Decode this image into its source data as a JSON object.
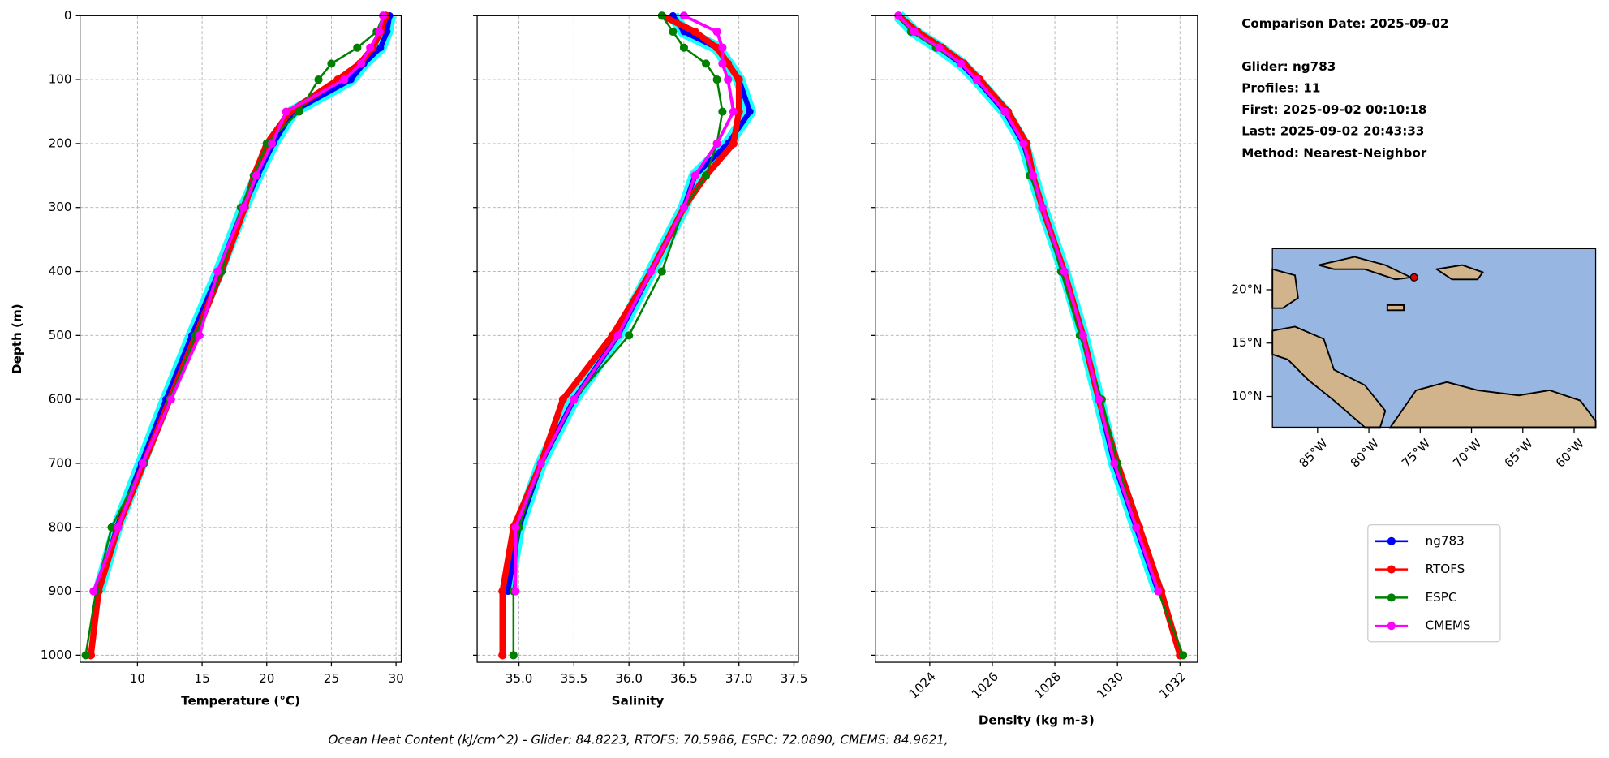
{
  "chart_data": [
    {
      "type": "line",
      "xlabel": "Temperature (°C)",
      "ylabel": "Depth (m)",
      "ytick_labels": true,
      "grid": true,
      "xlim": [
        5.56,
        30.4
      ],
      "xticks": [
        10,
        15,
        20,
        25,
        30
      ],
      "ylim": [
        1011,
        0
      ],
      "yticks": [
        0,
        100,
        200,
        300,
        400,
        500,
        600,
        700,
        800,
        900,
        1000
      ],
      "depth": [
        0,
        25,
        50,
        75,
        100,
        150,
        200,
        250,
        300,
        400,
        500,
        600,
        700,
        800,
        900,
        1000
      ],
      "series": [
        {
          "name": "ng783",
          "color": "#0000ff",
          "values": [
            29.5,
            29.3,
            28.8,
            27.5,
            26.5,
            22.0,
            20.5,
            19.3,
            18.2,
            16.3,
            14.2,
            12.2,
            10.3,
            8.4,
            7.0,
            null
          ]
        },
        {
          "name": "RTOFS",
          "color": "#ff0000",
          "values": [
            29.2,
            28.8,
            28.2,
            27.2,
            25.5,
            21.8,
            20.0,
            19.0,
            18.3,
            16.5,
            14.5,
            12.5,
            10.5,
            8.5,
            7.0,
            6.4
          ]
        },
        {
          "name": "ESPC",
          "color": "#008000",
          "values": [
            29.0,
            28.5,
            27.0,
            25.0,
            24.0,
            22.5,
            20.0,
            19.0,
            18.0,
            16.5,
            14.5,
            12.5,
            10.5,
            8.0,
            6.8,
            6.0
          ]
        },
        {
          "name": "CMEMS",
          "color": "#ff00ff",
          "values": [
            29.0,
            28.7,
            28.0,
            27.3,
            26.0,
            21.5,
            20.4,
            19.2,
            18.2,
            16.2,
            14.8,
            12.6,
            10.4,
            8.5,
            6.6,
            null
          ]
        }
      ]
    },
    {
      "type": "line",
      "xlabel": "Salinity",
      "ytick_labels": false,
      "grid": true,
      "xlim": [
        34.62,
        37.54
      ],
      "xticks": [
        {
          "value": 35,
          "label": "35.0"
        },
        35.5,
        {
          "value": 36,
          "label": "36.0"
        },
        36.5,
        {
          "value": 37,
          "label": "37.0"
        },
        37.5
      ],
      "ylim": [
        1011,
        0
      ],
      "yticks": [
        0,
        100,
        200,
        300,
        400,
        500,
        600,
        700,
        800,
        900,
        1000
      ],
      "depth": [
        0,
        25,
        50,
        75,
        100,
        150,
        200,
        250,
        300,
        400,
        500,
        600,
        700,
        800,
        900,
        1000
      ],
      "series": [
        {
          "name": "ng783",
          "color": "#0000ff",
          "values": [
            36.4,
            36.5,
            36.8,
            36.9,
            37.0,
            37.1,
            36.9,
            36.6,
            36.5,
            36.2,
            35.9,
            35.5,
            35.2,
            35.0,
            34.9,
            null
          ]
        },
        {
          "name": "RTOFS",
          "color": "#ff0000",
          "values": [
            36.3,
            36.6,
            36.8,
            36.9,
            37.0,
            37.0,
            36.95,
            36.7,
            36.5,
            36.2,
            35.85,
            35.4,
            35.2,
            34.95,
            34.85,
            34.85
          ]
        },
        {
          "name": "ESPC",
          "color": "#008000",
          "values": [
            36.3,
            36.4,
            36.5,
            36.7,
            36.8,
            36.85,
            36.8,
            36.7,
            36.5,
            36.3,
            36.0,
            35.5,
            35.2,
            35.0,
            34.95,
            34.95
          ]
        },
        {
          "name": "CMEMS",
          "color": "#ff00ff",
          "values": [
            36.5,
            36.8,
            36.85,
            36.85,
            36.9,
            36.95,
            36.8,
            36.6,
            36.5,
            36.2,
            35.9,
            35.5,
            35.2,
            34.97,
            34.97,
            null
          ]
        }
      ]
    },
    {
      "type": "line",
      "xlabel": "Density (kg m-3)",
      "ytick_labels": false,
      "grid": true,
      "xlim": [
        1022.26,
        1032.56
      ],
      "xticks": [
        1024,
        1026,
        1028,
        1030,
        1032
      ],
      "ylim": [
        1011,
        0
      ],
      "yticks": [
        0,
        100,
        200,
        300,
        400,
        500,
        600,
        700,
        800,
        900,
        1000
      ],
      "depth": [
        0,
        25,
        50,
        75,
        100,
        150,
        200,
        250,
        300,
        400,
        500,
        600,
        700,
        800,
        900,
        1000
      ],
      "series": [
        {
          "name": "ng783",
          "color": "#0000ff",
          "values": [
            1023.0,
            1023.5,
            1024.3,
            1025.0,
            1025.5,
            1026.4,
            1027.0,
            1027.3,
            1027.6,
            1028.3,
            1028.9,
            1029.4,
            1029.9,
            1030.6,
            1031.3,
            null
          ]
        },
        {
          "name": "RTOFS",
          "color": "#ff0000",
          "values": [
            1023.0,
            1023.6,
            1024.4,
            1025.1,
            1025.6,
            1026.5,
            1027.1,
            1027.3,
            1027.6,
            1028.3,
            1028.9,
            1029.4,
            1030.0,
            1030.7,
            1031.4,
            1032.0
          ]
        },
        {
          "name": "ESPC",
          "color": "#008000",
          "values": [
            1023.0,
            1023.4,
            1024.2,
            1025.0,
            1025.5,
            1026.4,
            1027.0,
            1027.2,
            1027.6,
            1028.2,
            1028.8,
            1029.5,
            1030.0,
            1030.6,
            1031.3,
            1032.1
          ]
        },
        {
          "name": "CMEMS",
          "color": "#ff00ff",
          "values": [
            1023.0,
            1023.5,
            1024.3,
            1025.0,
            1025.5,
            1026.4,
            1027.0,
            1027.3,
            1027.6,
            1028.3,
            1028.9,
            1029.4,
            1029.9,
            1030.6,
            1031.3,
            null
          ]
        }
      ]
    }
  ],
  "info": [
    "Comparison Date: 2025-09-02",
    "Glider: ng783",
    "Profiles: 11",
    "First: 2025-09-02 00:10:18",
    "Last: 2025-09-02 20:43:33",
    "Method: Nearest-Neighbor"
  ],
  "map": {
    "lat_labels": [
      "20°N",
      "15°N",
      "10°N"
    ],
    "lon_labels": [
      "85°W",
      "80°W",
      "75°W",
      "70°W",
      "65°W",
      "60°W"
    ]
  },
  "footer": "Ocean Heat Content (kJ/cm^2) - Glider: 84.8223,  RTOFS: 70.5986,  ESPC: 72.0890,  CMEMS: 84.9621,"
}
